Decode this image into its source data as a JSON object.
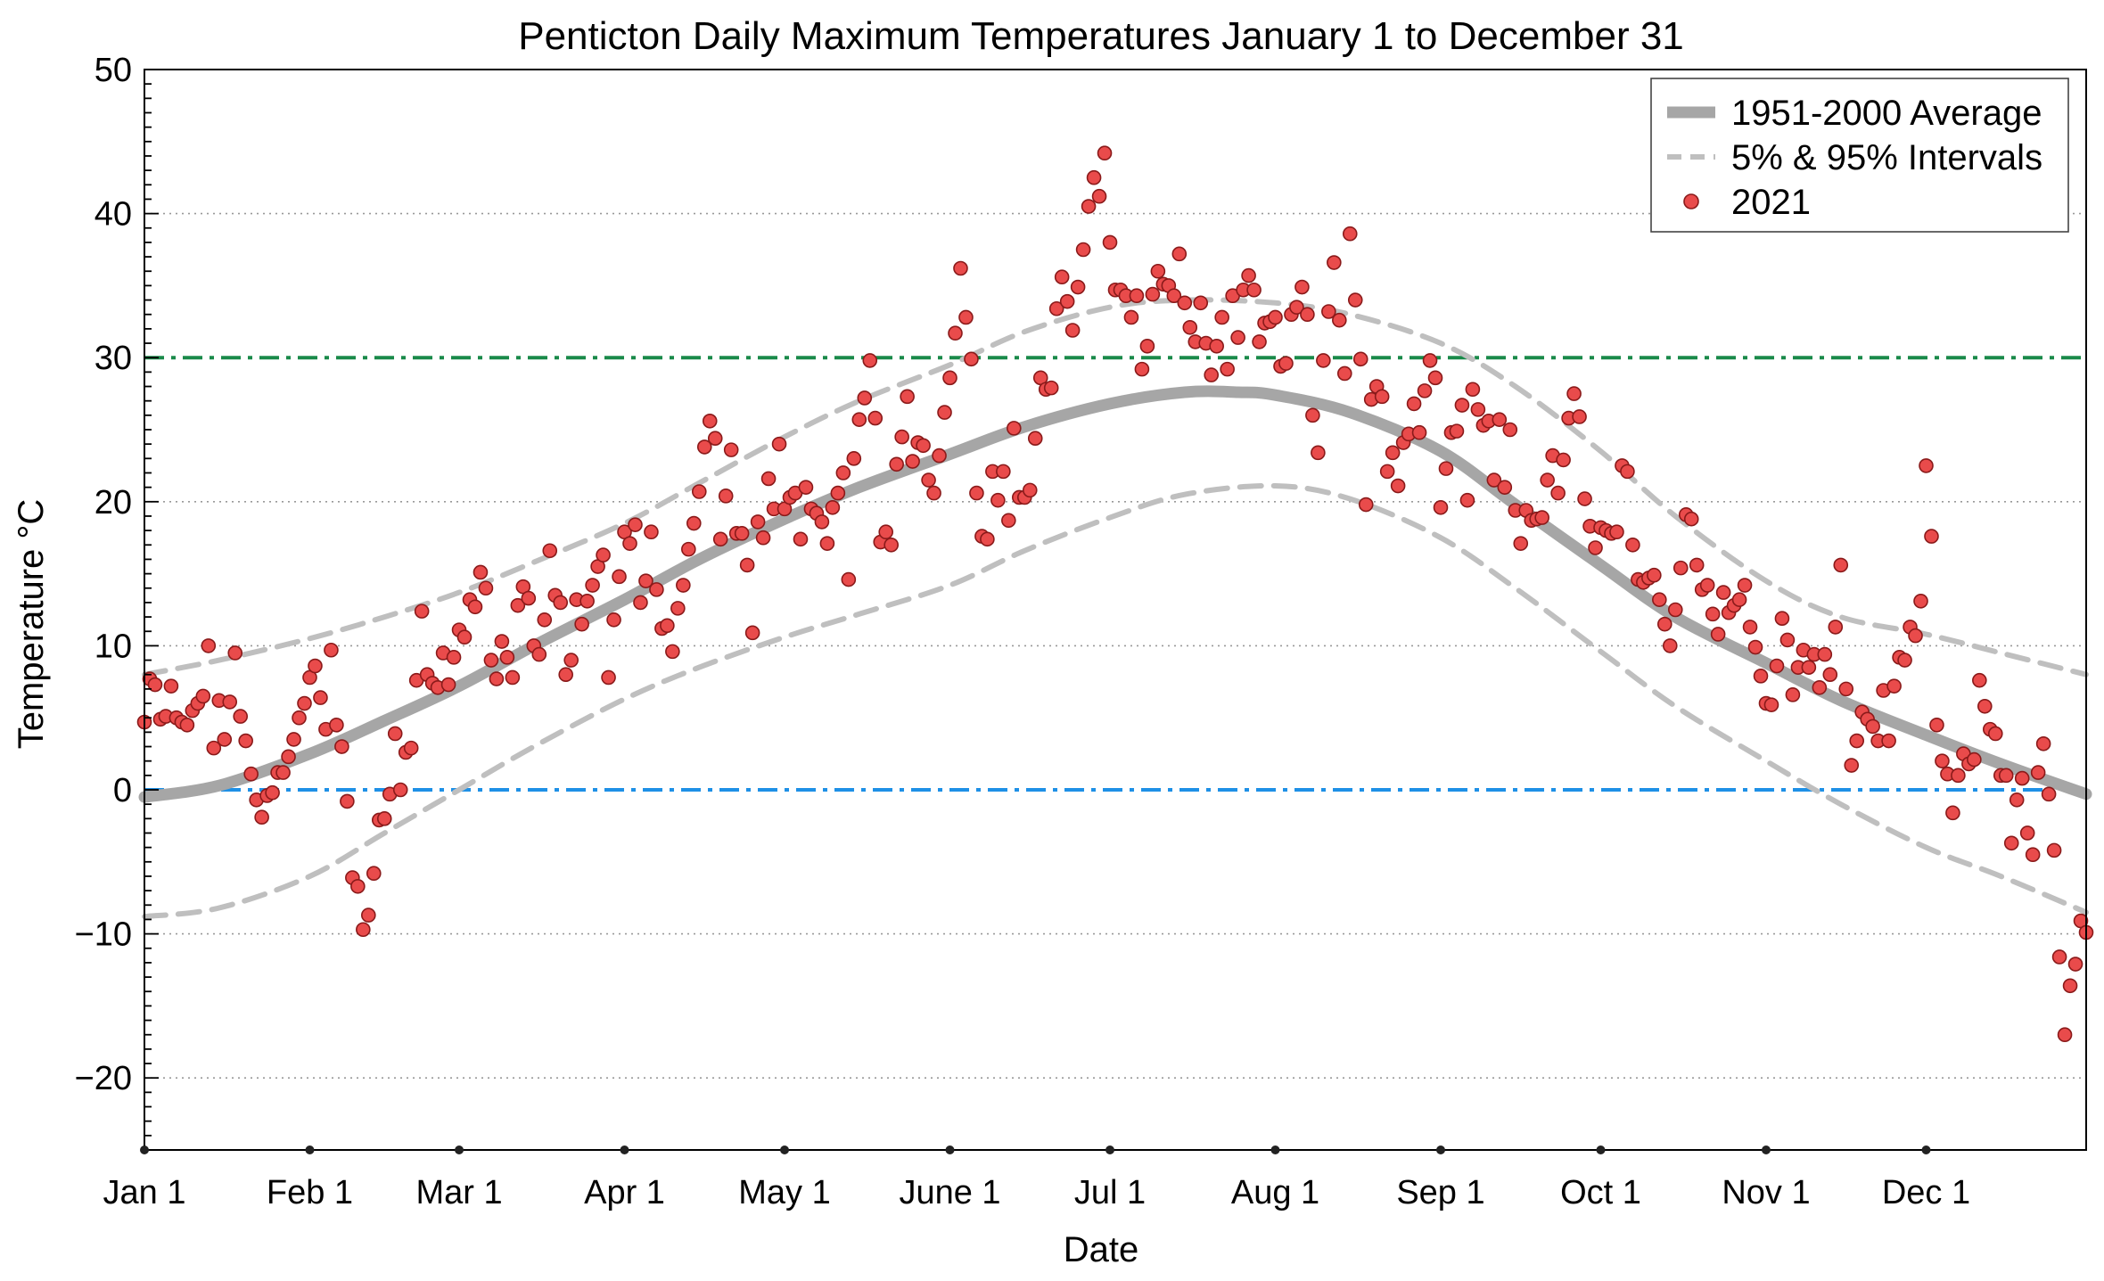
{
  "chart_data": {
    "type": "scatter",
    "title": "Penticton Daily Maximum Temperatures January 1 to December 31",
    "xlabel": "Date",
    "ylabel": "Temperature °C",
    "x_unit": "day of year",
    "xlim": [
      1,
      365
    ],
    "ylim": [
      -25,
      50
    ],
    "yticks": [
      -20,
      -10,
      0,
      10,
      20,
      30,
      40,
      50
    ],
    "month_ticks": [
      {
        "day": 1,
        "label": "Jan 1"
      },
      {
        "day": 32,
        "label": "Feb 1"
      },
      {
        "day": 60,
        "label": "Mar 1"
      },
      {
        "day": 91,
        "label": "Apr 1"
      },
      {
        "day": 121,
        "label": "May 1"
      },
      {
        "day": 152,
        "label": "June 1"
      },
      {
        "day": 182,
        "label": "Jul 1"
      },
      {
        "day": 213,
        "label": "Aug 1"
      },
      {
        "day": 244,
        "label": "Sep 1"
      },
      {
        "day": 274,
        "label": "Oct 1"
      },
      {
        "day": 305,
        "label": "Nov 1"
      },
      {
        "day": 335,
        "label": "Dec 1"
      }
    ],
    "grid": "horizontal dotted",
    "legend_position": "top-right",
    "reference_lines": [
      {
        "y": 30,
        "color": "#1a8a4a",
        "style": "dash-dot"
      },
      {
        "y": 0,
        "color": "#1e90e6",
        "style": "dash-dot"
      }
    ],
    "series": [
      {
        "name": "1951-2000 Average",
        "kind": "line",
        "color": "#a6a6a6",
        "x": [
          1,
          15,
          32,
          46,
          60,
          74,
          91,
          105,
          121,
          135,
          152,
          166,
          182,
          196,
          206,
          213,
          227,
          244,
          258,
          274,
          288,
          305,
          319,
          335,
          349,
          365
        ],
        "values": [
          -0.5,
          0.3,
          2.5,
          4.8,
          7.2,
          10.0,
          13.2,
          16.0,
          18.8,
          21.0,
          23.3,
          25.2,
          26.8,
          27.6,
          27.6,
          27.4,
          26.2,
          23.5,
          19.8,
          15.6,
          12.0,
          8.8,
          6.2,
          3.8,
          1.8,
          -0.3
        ]
      },
      {
        "name": "5% & 95% Intervals",
        "kind": "line",
        "color": "#bfbfbf",
        "dashed": true,
        "bands": [
          {
            "x": [
              1,
              15,
              32,
              46,
              60,
              74,
              91,
              105,
              121,
              135,
              152,
              166,
              182,
              196,
              213,
              227,
              244,
              258,
              274,
              288,
              305,
              319,
              335,
              349,
              365
            ],
            "values": [
              8.0,
              9.0,
              10.5,
              12.0,
              13.7,
              15.8,
              18.5,
              21.3,
              24.5,
              27.0,
              29.5,
              31.8,
              33.5,
              34.0,
              33.8,
              33.0,
              31.0,
              28.0,
              23.5,
              19.0,
              14.5,
              12.0,
              10.8,
              9.5,
              8.0
            ]
          },
          {
            "x": [
              1,
              15,
              32,
              46,
              60,
              74,
              91,
              105,
              121,
              135,
              152,
              166,
              182,
              196,
              213,
              227,
              244,
              258,
              274,
              288,
              305,
              319,
              335,
              349,
              365
            ],
            "values": [
              -8.8,
              -8.2,
              -6.0,
              -3.0,
              0.0,
              3.0,
              6.3,
              8.5,
              10.6,
              12.2,
              14.2,
              16.6,
              18.9,
              20.5,
              21.1,
              20.2,
              17.5,
              14.0,
              9.6,
              5.8,
              2.0,
              -1.0,
              -4.0,
              -6.0,
              -8.5
            ]
          }
        ]
      },
      {
        "name": "2021",
        "kind": "scatter",
        "color": "#e94b4b",
        "x": [
          1,
          2,
          3,
          4,
          5,
          6,
          7,
          8,
          9,
          10,
          11,
          12,
          13,
          14,
          15,
          16,
          17,
          18,
          19,
          20,
          21,
          22,
          23,
          24,
          25,
          26,
          27,
          28,
          29,
          30,
          31,
          32,
          33,
          34,
          35,
          36,
          37,
          38,
          39,
          40,
          41,
          42,
          43,
          44,
          45,
          46,
          47,
          48,
          49,
          50,
          51,
          52,
          53,
          54,
          55,
          56,
          57,
          58,
          59,
          60,
          61,
          62,
          63,
          64,
          65,
          66,
          67,
          68,
          69,
          70,
          71,
          72,
          73,
          74,
          75,
          76,
          77,
          78,
          79,
          80,
          81,
          82,
          83,
          84,
          85,
          86,
          87,
          88,
          89,
          90,
          91,
          92,
          93,
          94,
          95,
          96,
          97,
          98,
          99,
          100,
          101,
          102,
          103,
          104,
          105,
          106,
          107,
          108,
          109,
          110,
          111,
          112,
          113,
          114,
          115,
          116,
          117,
          118,
          119,
          120,
          121,
          122,
          123,
          124,
          125,
          126,
          127,
          128,
          129,
          130,
          131,
          132,
          133,
          134,
          135,
          136,
          137,
          138,
          139,
          140,
          141,
          142,
          143,
          144,
          145,
          146,
          147,
          148,
          149,
          150,
          151,
          152,
          153,
          154,
          155,
          156,
          157,
          158,
          159,
          160,
          161,
          162,
          163,
          164,
          165,
          166,
          167,
          168,
          169,
          170,
          171,
          172,
          173,
          174,
          175,
          176,
          177,
          178,
          179,
          180,
          181,
          182,
          183,
          184,
          185,
          186,
          187,
          188,
          189,
          190,
          191,
          192,
          193,
          194,
          195,
          196,
          197,
          198,
          199,
          200,
          201,
          202,
          203,
          204,
          205,
          206,
          207,
          208,
          209,
          210,
          211,
          212,
          213,
          214,
          215,
          216,
          217,
          218,
          219,
          220,
          221,
          222,
          223,
          224,
          225,
          226,
          227,
          228,
          229,
          230,
          231,
          232,
          233,
          234,
          235,
          236,
          237,
          238,
          239,
          240,
          241,
          242,
          243,
          244,
          245,
          246,
          247,
          248,
          249,
          250,
          251,
          252,
          253,
          254,
          255,
          256,
          257,
          258,
          259,
          260,
          261,
          262,
          263,
          264,
          265,
          266,
          267,
          268,
          269,
          270,
          271,
          272,
          273,
          274,
          275,
          276,
          277,
          278,
          279,
          280,
          281,
          282,
          283,
          284,
          285,
          286,
          287,
          288,
          289,
          290,
          291,
          292,
          293,
          294,
          295,
          296,
          297,
          298,
          299,
          300,
          301,
          302,
          303,
          304,
          305,
          306,
          307,
          308,
          309,
          310,
          311,
          312,
          313,
          314,
          315,
          316,
          317,
          318,
          319,
          320,
          321,
          322,
          323,
          324,
          325,
          326,
          327,
          328,
          329,
          330,
          331,
          332,
          333,
          334,
          335,
          336,
          337,
          338,
          339,
          340,
          341,
          342,
          343,
          344,
          345,
          346,
          347,
          348,
          349,
          350,
          351,
          352,
          353,
          354,
          355,
          356,
          357,
          358,
          359,
          360,
          361,
          362,
          363,
          364,
          365
        ],
        "values": [
          4.7,
          7.7,
          7.3,
          4.9,
          5.1,
          7.2,
          5.0,
          4.7,
          4.5,
          5.5,
          6.0,
          6.5,
          10.0,
          2.9,
          6.2,
          3.5,
          6.1,
          9.5,
          5.1,
          3.4,
          1.1,
          -0.7,
          -1.9,
          -0.4,
          -0.2,
          1.2,
          1.2,
          2.3,
          3.5,
          5.0,
          6.0,
          7.8,
          8.6,
          6.4,
          4.2,
          9.7,
          4.5,
          3.0,
          -0.8,
          -6.1,
          -6.7,
          -9.7,
          -8.7,
          -5.8,
          -2.1,
          -2.0,
          -0.3,
          3.9,
          0.0,
          2.6,
          2.9,
          7.6,
          12.4,
          8.0,
          7.4,
          7.1,
          9.5,
          7.3,
          9.2,
          11.1,
          10.6,
          13.2,
          12.7,
          15.1,
          14.0,
          9.0,
          7.7,
          10.3,
          9.2,
          7.8,
          12.8,
          14.1,
          13.3,
          10.0,
          9.4,
          11.8,
          16.6,
          13.5,
          13.0,
          8.0,
          9.0,
          13.2,
          11.5,
          13.1,
          14.2,
          15.5,
          16.3,
          7.8,
          11.8,
          14.8,
          17.9,
          17.1,
          18.4,
          13.0,
          14.5,
          17.9,
          13.9,
          11.2,
          11.4,
          9.6,
          12.6,
          14.2,
          16.7,
          18.5,
          20.7,
          23.8,
          25.6,
          24.4,
          17.4,
          20.4,
          23.6,
          17.8,
          17.8,
          15.6,
          10.9,
          18.6,
          17.5,
          21.6,
          19.5,
          24.0,
          19.5,
          20.3,
          20.6,
          17.4,
          21.0,
          19.5,
          19.2,
          18.6,
          17.1,
          19.6,
          20.6,
          22.0,
          14.6,
          23.0,
          25.7,
          27.2,
          29.8,
          25.8,
          17.2,
          17.9,
          17.0,
          22.6,
          24.5,
          27.3,
          22.8,
          24.1,
          23.9,
          21.5,
          20.6,
          23.2,
          26.2,
          28.6,
          31.7,
          36.2,
          32.8,
          29.9,
          20.6,
          17.6,
          17.4,
          22.1,
          20.1,
          22.1,
          18.7,
          25.1,
          20.3,
          20.3,
          20.8,
          24.4,
          28.6,
          27.8,
          27.9,
          33.4,
          35.6,
          33.9,
          31.9,
          34.9,
          37.5,
          40.5,
          42.5,
          41.2,
          44.2,
          38.0,
          34.7,
          34.7,
          34.3,
          32.8,
          34.3,
          29.2,
          30.8,
          34.4,
          36.0,
          35.1,
          35.0,
          34.3,
          37.2,
          33.8,
          32.1,
          31.1,
          33.8,
          31.0,
          28.8,
          30.8,
          32.8,
          29.2,
          34.3,
          31.4,
          34.7,
          35.7,
          34.7,
          31.1,
          32.4,
          32.5,
          32.8,
          29.4,
          29.6,
          33.0,
          33.5,
          34.9,
          33.0,
          26.0,
          23.4,
          29.8,
          33.2,
          36.6,
          32.6,
          28.9,
          38.6,
          34.0,
          29.9,
          19.8,
          27.1,
          28.0,
          27.3,
          22.1,
          23.4,
          21.1,
          24.1,
          24.7,
          26.8,
          24.8,
          27.7,
          29.8,
          28.6,
          19.6,
          22.3,
          24.8,
          24.9,
          26.7,
          20.1,
          27.8,
          26.4,
          25.3,
          25.6,
          21.5,
          25.7,
          21.0,
          25.0,
          19.4,
          17.1,
          19.4,
          18.7,
          18.8,
          18.9,
          21.5,
          23.2,
          20.6,
          22.9,
          25.8,
          27.5,
          25.9,
          20.2,
          18.3,
          16.8,
          18.2,
          18.0,
          17.8,
          17.9,
          22.5,
          22.1,
          17.0,
          14.6,
          14.4,
          14.7,
          14.9,
          13.2,
          11.5,
          10.0,
          12.5,
          15.4,
          19.1,
          18.8,
          15.6,
          13.9,
          14.2,
          12.2,
          10.8,
          13.7,
          12.3,
          12.8,
          13.2,
          14.2,
          11.3,
          9.9,
          7.9,
          6.0,
          5.9,
          8.6,
          11.9,
          10.4,
          6.6,
          8.5,
          9.7,
          8.5,
          9.4,
          7.1,
          9.4,
          8.0,
          11.3,
          15.6,
          7.0,
          1.7,
          3.4,
          5.4,
          4.9,
          4.4,
          3.4,
          6.9,
          3.4,
          7.2,
          9.2,
          9.0,
          11.3,
          10.7,
          13.1,
          22.5,
          17.6,
          4.5,
          2.0,
          1.1,
          -1.6,
          1.0,
          2.5,
          1.8,
          2.1,
          7.6,
          5.8,
          4.2,
          3.9,
          1.0,
          1.0,
          -3.7,
          -0.7,
          0.8,
          -3.0,
          -4.5,
          1.2,
          3.2,
          -0.3,
          -4.2,
          -11.6,
          -17.0,
          -13.6,
          -12.1,
          -9.1,
          -9.9
        ]
      }
    ],
    "legend": [
      {
        "label": "1951-2000 Average",
        "kind": "line"
      },
      {
        "label": "5% & 95% Intervals",
        "kind": "dashed"
      },
      {
        "label": "2021",
        "kind": "marker"
      }
    ]
  }
}
